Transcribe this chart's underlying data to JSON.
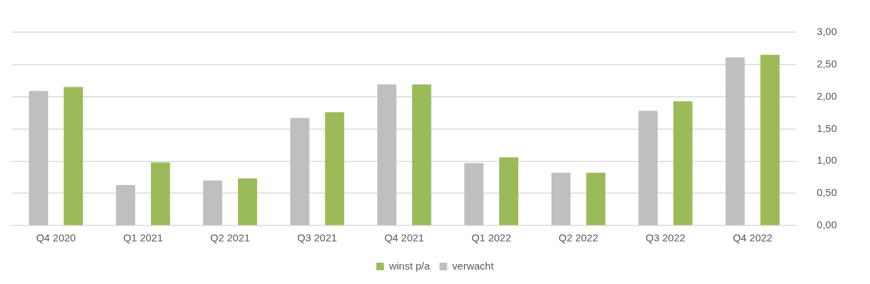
{
  "chart_data": {
    "type": "bar",
    "categories": [
      "Q4 2020",
      "Q1 2021",
      "Q2 2021",
      "Q3 2021",
      "Q4 2021",
      "Q1 2022",
      "Q2 2022",
      "Q3 2022",
      "Q4 2022"
    ],
    "series": [
      {
        "name": "verwacht",
        "color": "#bfbfbf",
        "values": [
          2.09,
          0.63,
          0.7,
          1.67,
          2.19,
          0.97,
          0.82,
          1.78,
          2.61
        ]
      },
      {
        "name": "winst p/a",
        "color": "#9bbb59",
        "values": [
          2.15,
          0.98,
          0.73,
          1.76,
          2.19,
          1.06,
          0.82,
          1.93,
          2.65
        ]
      }
    ],
    "ylim": [
      0,
      3
    ],
    "yticks": [
      {
        "value": 0,
        "label": "0,00"
      },
      {
        "value": 0.5,
        "label": "0,50"
      },
      {
        "value": 1,
        "label": "1,00"
      },
      {
        "value": 1.5,
        "label": "1,50"
      },
      {
        "value": 2,
        "label": "2,00"
      },
      {
        "value": 2.5,
        "label": "2,50"
      },
      {
        "value": 3,
        "label": "3,00"
      }
    ],
    "grid": "y",
    "legend": "bottom"
  }
}
